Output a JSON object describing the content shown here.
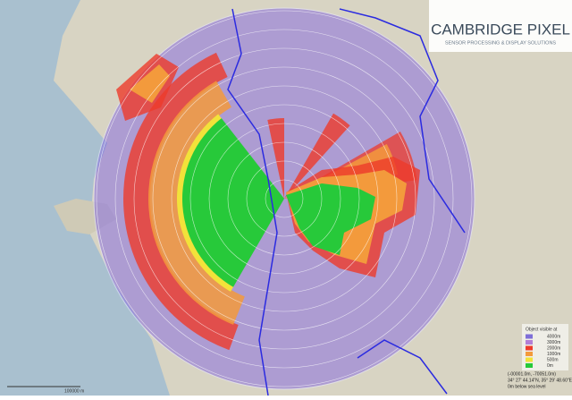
{
  "logo": {
    "title": "CAMBRIDGE PIXEL",
    "subtitle": "SENSOR PROCESSING & DISPLAY SOLUTIONS"
  },
  "legend": {
    "title": "Object visible at",
    "items": [
      {
        "label": "4000m",
        "color": "#7f6fd8"
      },
      {
        "label": "3000m",
        "color": "#b27fd6"
      },
      {
        "label": "2000m",
        "color": "#ee3b2b"
      },
      {
        "label": "1000m",
        "color": "#f39a3c"
      },
      {
        "label": "500m",
        "color": "#f2e23a"
      },
      {
        "label": "0m",
        "color": "#27c93a"
      }
    ]
  },
  "status": {
    "lines": [
      "(-00001.0m, -70051.0m)",
      "34° 27' 44.14\"N, 35° 29' 48.60\"E",
      "0m below sea level"
    ]
  },
  "scale": {
    "label": "100000 m"
  }
}
